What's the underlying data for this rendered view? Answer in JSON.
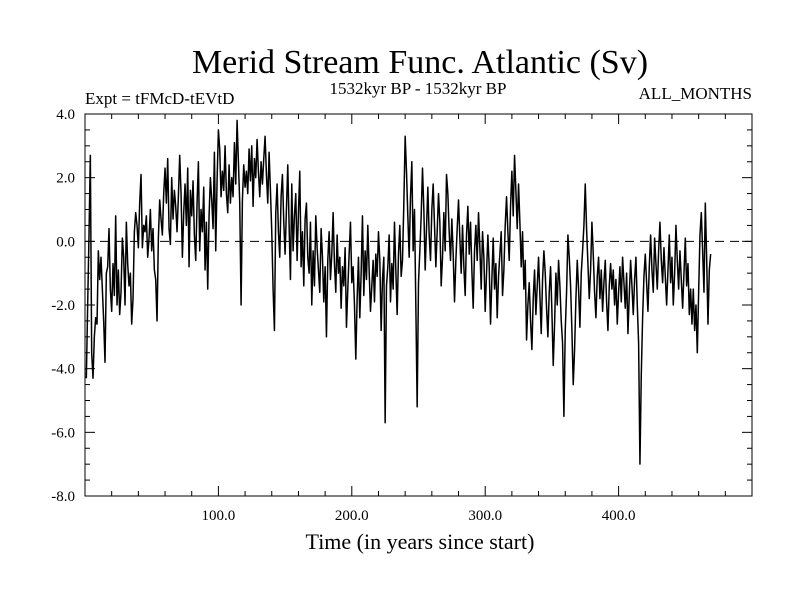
{
  "chart_data": {
    "type": "line",
    "title": "Merid Stream Func. Atlantic (Sv)",
    "subtitle_left": "Expt = tFMcD-tEVtD",
    "subtitle_center": "1532kyr BP - 1532kyr BP",
    "subtitle_right": "ALL_MONTHS",
    "xlabel": "Time (in years since start)",
    "ylabel": "",
    "xlim": [
      0,
      500
    ],
    "ylim": [
      -8,
      4
    ],
    "x_ticks": [
      100,
      200,
      300,
      400
    ],
    "x_tick_labels": [
      "100.0",
      "200.0",
      "300.0",
      "400.0"
    ],
    "y_ticks": [
      -8,
      -6,
      -4,
      -2,
      0,
      2,
      4
    ],
    "y_tick_labels": [
      "-8.0",
      "-6.0",
      "-4.0",
      "-2.0",
      "0.0",
      "2.0",
      "4.0"
    ],
    "reference_line": 0,
    "series": [
      {
        "name": "Merid Stream Func. Atlantic",
        "x_start": 1,
        "x_step": 1,
        "values": [
          -4.3,
          -2.0,
          0.2,
          2.7,
          -3.5,
          -4.3,
          -3.0,
          -2.4,
          -2.6,
          -0.3,
          -1.2,
          -0.5,
          -1.5,
          -2.5,
          -3.8,
          -1.0,
          -0.8,
          0.4,
          -1.5,
          -2.2,
          -0.7,
          -1.7,
          0.8,
          -2.0,
          -0.9,
          -2.3,
          -1.6,
          0.1,
          -0.5,
          -2.0,
          0.6,
          -0.7,
          -1.4,
          -1.0,
          -2.6,
          -1.8,
          0.3,
          0.9,
          0.5,
          -0.2,
          1.2,
          2.1,
          -0.2,
          0.5,
          0.3,
          0.8,
          -0.5,
          0.1,
          1.0,
          -0.3,
          0.4,
          -0.9,
          -1.2,
          -2.5,
          0.1,
          1.3,
          0.7,
          0.2,
          1.5,
          2.3,
          1.2,
          2.6,
          0.4,
          -0.1,
          2.0,
          0.7,
          1.6,
          1.1,
          0.3,
          1.4,
          2.7,
          1.5,
          -0.5,
          0.9,
          1.8,
          0.5,
          2.3,
          -0.8,
          1.6,
          0.8,
          1.9,
          0.2,
          -0.6,
          1.2,
          2.5,
          -0.3,
          1.0,
          0.3,
          1.7,
          -0.9,
          0.6,
          -1.5,
          0.8,
          2.0,
          1.3,
          0.4,
          2.8,
          -0.3,
          1.9,
          3.5,
          2.9,
          1.4,
          2.2,
          1.6,
          3.0,
          1.5,
          0.9,
          2.4,
          1.2,
          2.0,
          1.4,
          3.1,
          1.8,
          3.8,
          2.5,
          1.2,
          -2.0,
          1.3,
          2.4,
          1.7,
          2.2,
          1.5,
          2.9,
          1.9,
          3.0,
          1.1,
          2.6,
          2.0,
          3.2,
          2.2,
          1.4,
          2.5,
          1.8,
          2.6,
          3.3,
          2.1,
          1.2,
          2.8,
          1.6,
          0.3,
          -1.5,
          -2.8,
          0.9,
          1.8,
          0.3,
          -0.5,
          1.4,
          2.1,
          0.6,
          -0.4,
          1.0,
          2.4,
          0.5,
          -1.2,
          1.8,
          -0.3,
          0.8,
          1.5,
          -0.6,
          0.9,
          2.2,
          -0.8,
          0.3,
          -1.4,
          0.7,
          1.2,
          -0.5,
          -1.0,
          0.6,
          -2.0,
          -0.3,
          -1.4,
          0.8,
          -0.2,
          -0.9,
          -1.6,
          0.4,
          -0.5,
          -1.9,
          -0.8,
          -3.0,
          -0.6,
          0.3,
          -1.2,
          -0.4,
          0.9,
          -0.7,
          -1.6,
          0.2,
          -1.0,
          -0.5,
          -2.1,
          -0.8,
          -1.4,
          -0.2,
          -2.7,
          -1.5,
          -0.4,
          0.6,
          -1.3,
          -0.8,
          -2.0,
          -3.7,
          -1.8,
          -0.5,
          -2.4,
          -1.0,
          0.8,
          -1.7,
          -0.3,
          -1.2,
          0.5,
          -0.9,
          -2.2,
          -1.4,
          -0.6,
          -1.9,
          -0.4,
          -1.1,
          0.3,
          -0.6,
          -2.8,
          -1.2,
          -0.5,
          -5.7,
          -1.4,
          -0.8,
          0.2,
          -1.9,
          -0.7,
          -1.5,
          0.6,
          -0.9,
          -2.3,
          -0.4,
          0.5,
          -1.1,
          -0.6,
          1.2,
          3.3,
          2.2,
          0.8,
          -0.5,
          1.4,
          2.5,
          -0.3,
          1.0,
          -2.0,
          -5.2,
          -1.3,
          -0.3,
          0.8,
          2.3,
          1.0,
          -0.9,
          0.4,
          1.7,
          0.2,
          -0.6,
          1.0,
          1.8,
          0.5,
          -0.8,
          0.3,
          1.5,
          0.6,
          -1.4,
          -0.5,
          0.9,
          -0.3,
          2.1,
          1.5,
          0.3,
          -0.6,
          0.7,
          -0.4,
          -1.9,
          -0.6,
          0.4,
          1.3,
          0.1,
          -1.0,
          0.5,
          -0.8,
          -1.7,
          0.2,
          1.1,
          -0.4,
          0.6,
          -0.9,
          -2.1,
          -0.3,
          0.5,
          -0.6,
          0.9,
          -0.2,
          -1.5,
          0.3,
          -0.5,
          -2.2,
          -1.0,
          0.2,
          -0.8,
          -2.6,
          -1.2,
          0.1,
          -1.5,
          -0.7,
          -2.4,
          -1.1,
          -0.4,
          0.3,
          -1.7,
          -0.9,
          0.5,
          1.4,
          0.3,
          -0.6,
          1.1,
          2.2,
          0.8,
          2.7,
          1.6,
          0.4,
          1.8,
          0.6,
          -0.8,
          0.3,
          -1.5,
          -0.6,
          -3.1,
          -2.0,
          -1.3,
          -2.5,
          -3.4,
          -1.8,
          -0.9,
          -2.3,
          -1.4,
          -0.5,
          -1.7,
          -2.9,
          -1.2,
          -0.3,
          -1.0,
          -2.1,
          -3.0,
          -1.6,
          -0.8,
          -2.2,
          -3.9,
          -2.6,
          -1.0,
          -2.0,
          -0.6,
          -1.4,
          -2.5,
          -3.2,
          -5.5,
          -2.8,
          -1.6,
          0.2,
          -0.5,
          -1.4,
          -2.8,
          -4.5,
          -3.4,
          -1.8,
          -0.6,
          -1.5,
          -2.7,
          -1.0,
          -0.3,
          0.5,
          1.8,
          0.4,
          -0.7,
          -1.8,
          -0.9,
          0.6,
          -0.4,
          -1.6,
          -2.4,
          -1.1,
          -0.5,
          -1.8,
          -0.9,
          -2.2,
          -1.3,
          -0.6,
          -1.9,
          -2.8,
          -1.4,
          -0.7,
          -1.5,
          -0.9,
          -2.0,
          -1.2,
          -2.6,
          -1.6,
          -0.8,
          -1.9,
          -0.5,
          -1.3,
          -2.1,
          -1.0,
          -2.9,
          -1.7,
          -0.6,
          -1.4,
          -2.3,
          -1.2,
          -0.5,
          -2.0,
          -3.2,
          -7.0,
          -4.2,
          -2.4,
          -1.1,
          -0.4,
          -1.3,
          -2.2,
          -0.8,
          0.2,
          -0.9,
          -1.6,
          0.1,
          -0.7,
          -1.5,
          -0.3,
          0.6,
          -0.6,
          -1.3,
          -0.2,
          -1.1,
          -2.0,
          -0.9,
          0.2,
          -1.3,
          -0.5,
          -2.0,
          -1.0,
          0.5,
          -0.6,
          -1.5,
          -0.3,
          -1.2,
          -2.1,
          -1.0,
          0.1,
          -1.4,
          -0.7,
          -2.3,
          -1.5,
          -2.6,
          -1.5,
          -2.8,
          -2.0,
          -3.5,
          -1.6,
          0.2,
          0.9,
          -0.3,
          -1.6,
          1.2,
          -0.5,
          -2.6,
          -0.9,
          -0.4
        ]
      }
    ]
  }
}
